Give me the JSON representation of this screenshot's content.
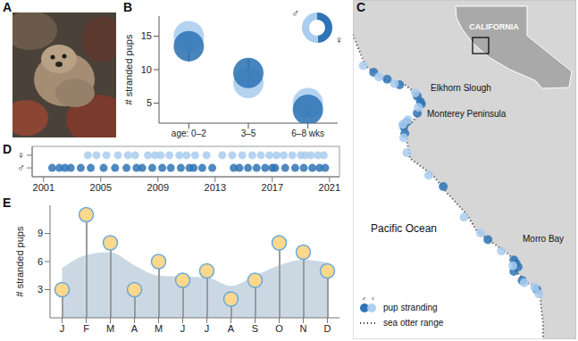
{
  "chart_data": [
    {
      "panel": "A",
      "type": "photo"
    },
    {
      "panel": "B",
      "type": "scatter",
      "y_label": "# stranded pups",
      "categories": [
        "age: 0–2",
        "3–5",
        "6–8 wks"
      ],
      "series": [
        {
          "name": "♂",
          "color": "#2f74b5",
          "values": [
            13.5,
            9.5,
            4
          ],
          "errors": [
            2.3,
            2,
            1
          ]
        },
        {
          "name": "♀",
          "color": "#a9cdee",
          "values": [
            15,
            8,
            5
          ]
        }
      ],
      "ylim": [
        2,
        18
      ],
      "yticks": [
        5,
        10,
        15
      ],
      "legend": "top-right"
    },
    {
      "panel": "C",
      "type": "map",
      "tick_labels": false,
      "xlim": [
        -122.45,
        -120.3
      ],
      "ylim": [
        34.7,
        37.7
      ],
      "coastline": {
        "lat": [
          37.7,
          37.5,
          37.3,
          37.12,
          37.0,
          36.96,
          36.95,
          36.9,
          36.8,
          36.7,
          36.62,
          36.6,
          36.55,
          36.45,
          36.3,
          36.15,
          36.0,
          35.8,
          35.66,
          35.55,
          35.45,
          35.37,
          35.3,
          35.2,
          35.15,
          35.0,
          34.85,
          34.7
        ],
        "lon": [
          -122.51,
          -122.5,
          -122.41,
          -122.33,
          -122.17,
          -122.02,
          -121.95,
          -121.88,
          -121.79,
          -121.81,
          -121.88,
          -121.94,
          -121.93,
          -121.93,
          -121.9,
          -121.68,
          -121.55,
          -121.35,
          -121.26,
          -121.1,
          -120.95,
          -120.87,
          -120.88,
          -120.78,
          -120.65,
          -120.64,
          -120.62,
          -120.62
        ]
      },
      "series": [
        {
          "name": "♂",
          "color": "#2f74b5",
          "lon": [
            -122.25,
            -122.12,
            -122.0,
            -121.83,
            -121.8,
            -121.79,
            -121.83,
            -121.93,
            -121.96,
            -121.95,
            -121.58,
            -121.15,
            -120.9,
            -120.88,
            -120.86,
            -120.9,
            -120.82,
            -120.68
          ],
          "lat": [
            37.06,
            37.0,
            36.95,
            36.85,
            36.8,
            36.78,
            36.7,
            36.62,
            36.58,
            36.52,
            36.05,
            35.58,
            35.4,
            35.37,
            35.34,
            35.3,
            35.22,
            35.14
          ]
        },
        {
          "name": "♀",
          "color": "#a9cdee",
          "lon": [
            -122.35,
            -122.2,
            -122.05,
            -121.85,
            -121.82,
            -121.92,
            -121.97,
            -121.96,
            -121.93,
            -121.72,
            -121.38,
            -121.22,
            -121.02,
            -120.91,
            -120.8,
            -120.7,
            -120.66
          ],
          "lat": [
            37.12,
            37.02,
            36.96,
            36.88,
            36.75,
            36.64,
            36.6,
            36.48,
            36.35,
            36.15,
            35.78,
            35.64,
            35.48,
            35.35,
            35.2,
            35.16,
            35.1
          ]
        }
      ],
      "inset": "CALIFORNIA",
      "annotations": [
        "Elkhorn Slough",
        "Monterey Peninsula",
        "Pacific Ocean",
        "Morro Bay"
      ],
      "legend_labels": [
        "pup stranding",
        "sea otter range"
      ],
      "legend": "bottom-left"
    },
    {
      "panel": "D",
      "type": "scatter",
      "series": [
        {
          "name": "♂",
          "color": "#2f74b5",
          "x": [
            2001.6,
            2002.1,
            2002.5,
            2002.9,
            2003.6,
            2004.3,
            2005.2,
            2006.0,
            2006.8,
            2007.5,
            2007.9,
            2008.6,
            2009.3,
            2009.9,
            2010.6,
            2011.2,
            2011.5,
            2012.1,
            2012.8,
            2014.3,
            2014.7,
            2015.3,
            2015.9,
            2016.5,
            2017.0,
            2017.2,
            2017.9,
            2018.6,
            2019.2,
            2019.8,
            2020.3,
            2020.7
          ]
        },
        {
          "name": "♀",
          "color": "#a9cdee",
          "x": [
            2004.1,
            2004.7,
            2005.4,
            2006.2,
            2006.9,
            2007.4,
            2008.3,
            2008.8,
            2009.2,
            2009.8,
            2010.5,
            2011.0,
            2011.6,
            2012.4,
            2013.5,
            2014.2,
            2014.9,
            2015.6,
            2016.2,
            2016.8,
            2017.3,
            2017.8,
            2018.4,
            2019.0,
            2019.3,
            2019.7,
            2020.2,
            2020.6
          ]
        }
      ],
      "xlim": [
        2000.2,
        2021.7
      ],
      "xticks": [
        2001,
        2005,
        2009,
        2013,
        2017,
        2021
      ],
      "ylim": [
        0.3,
        2.7
      ],
      "yticks": [
        {
          "value": 1,
          "label": "♂"
        },
        {
          "value": 2,
          "label": "♀"
        }
      ]
    },
    {
      "panel": "E",
      "type": "lollipop",
      "y_label": "# stranded pups",
      "categories": [
        "J",
        "F",
        "M",
        "A",
        "M",
        "J",
        "J",
        "A",
        "S",
        "O",
        "N",
        "D"
      ],
      "series": [
        {
          "type": "area",
          "color": "#cbd8e4",
          "values": [
            5.3,
            6.7,
            7.0,
            5.6,
            4.5,
            4.4,
            4.3,
            3.4,
            4.5,
            5.6,
            6.2,
            5.9
          ]
        },
        {
          "type": "lollipop",
          "color": "#fcd88c",
          "values": [
            3,
            11,
            8,
            3,
            6,
            4,
            5,
            2,
            4,
            8,
            7,
            5
          ]
        }
      ],
      "ylim": [
        0,
        12
      ],
      "yticks": [
        3,
        6,
        9
      ]
    }
  ]
}
